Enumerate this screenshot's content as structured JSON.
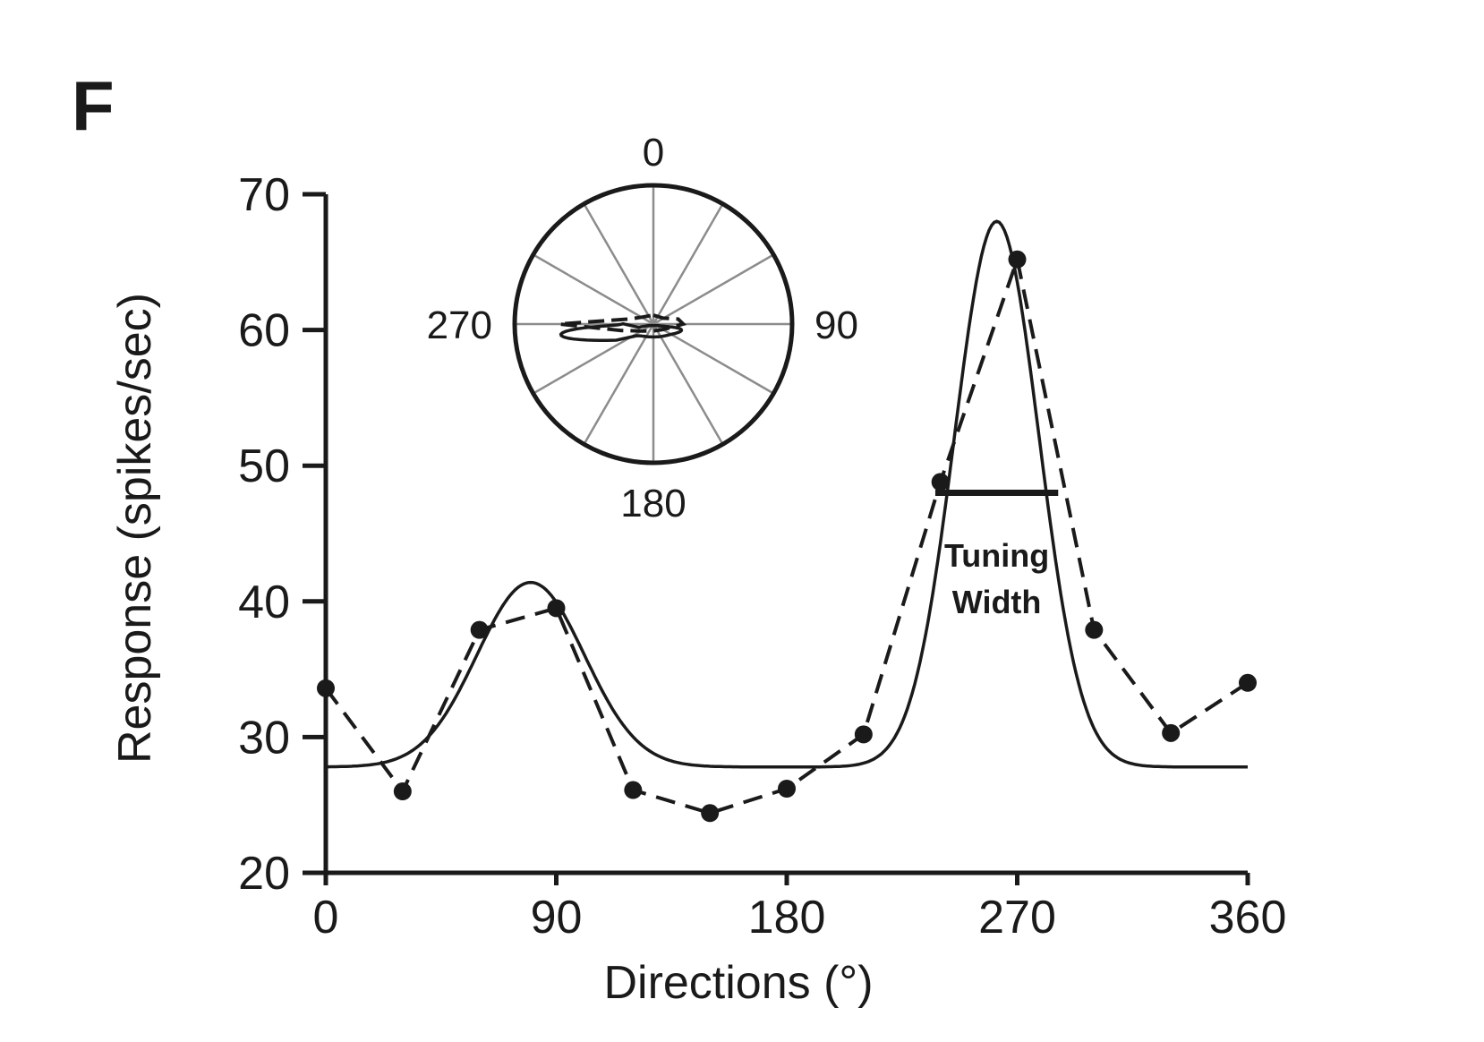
{
  "panel_label": "F",
  "chart_data": {
    "type": "line",
    "title": "",
    "xlabel": "Directions (°)",
    "ylabel": "Response (spikes/sec)",
    "xlim": [
      0,
      360
    ],
    "ylim": [
      20,
      70
    ],
    "x_ticks": [
      0,
      90,
      180,
      270,
      360
    ],
    "y_ticks": [
      20,
      30,
      40,
      50,
      60,
      70
    ],
    "grid": false,
    "series": [
      {
        "style": "dashed-with-markers",
        "x": [
          0,
          30,
          60,
          90,
          120,
          150,
          180,
          210,
          240,
          270,
          300,
          330,
          360
        ],
        "y": [
          33.6,
          26.0,
          37.9,
          39.5,
          26.1,
          24.4,
          26.2,
          30.2,
          48.8,
          65.2,
          37.9,
          30.3,
          34.0
        ]
      },
      {
        "style": "solid-fit",
        "baseline": 27.8,
        "peaks": [
          {
            "center": 80,
            "amplitude": 13.6,
            "sigma": 21
          },
          {
            "center": 262,
            "amplitude": 40.2,
            "sigma": 16.5
          }
        ]
      }
    ],
    "annotations": [
      {
        "text_lines": [
          "Tuning",
          "Width"
        ],
        "bar_x": [
          238,
          286
        ],
        "bar_y": 48
      }
    ],
    "inset_polar": {
      "direction_labels": [
        "0",
        "90",
        "180",
        "270"
      ],
      "spokes_deg": [
        0,
        30,
        60,
        90,
        120,
        150,
        180,
        210,
        240,
        270,
        300,
        330
      ]
    }
  }
}
